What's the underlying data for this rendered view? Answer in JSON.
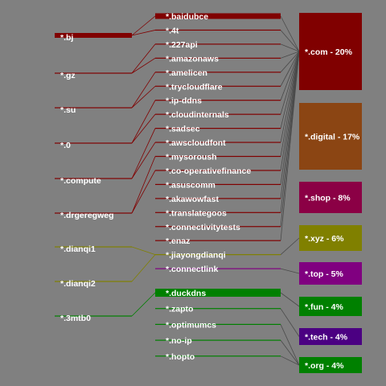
{
  "colors": {
    "background": "#808080",
    "link_default": "#4a4a4a"
  },
  "left_nodes": [
    {
      "id": "bj",
      "label": "*.bj",
      "color": "#800000"
    },
    {
      "id": "gz",
      "label": "*.gz",
      "color": "#800000"
    },
    {
      "id": "su",
      "label": "*.su",
      "color": "#800000"
    },
    {
      "id": "0",
      "label": "*.0",
      "color": "#800000"
    },
    {
      "id": "compute",
      "label": "*.compute",
      "color": "#800000"
    },
    {
      "id": "drgeregweg",
      "label": "*.drgeregweg",
      "color": "#800000"
    },
    {
      "id": "dianqi1",
      "label": "*.dianqi1",
      "color": "#808000"
    },
    {
      "id": "dianqi2",
      "label": "*.dianqi2",
      "color": "#808000"
    },
    {
      "id": "3mtb0",
      "label": "*.3mtb0",
      "color": "#008000"
    }
  ],
  "middle_nodes": [
    {
      "id": "baidubce",
      "label": "*.baidubce",
      "color": "#800000"
    },
    {
      "id": "4t",
      "label": "*.4t",
      "color": "#800000"
    },
    {
      "id": "227api",
      "label": "*.227api",
      "color": "#800000"
    },
    {
      "id": "amazonaws",
      "label": "*.amazonaws",
      "color": "#800000"
    },
    {
      "id": "amelicen",
      "label": "*.amelicen",
      "color": "#800000"
    },
    {
      "id": "trycloudflare",
      "label": "*.trycloudflare",
      "color": "#800000"
    },
    {
      "id": "ip-ddns",
      "label": "*.ip-ddns",
      "color": "#800000"
    },
    {
      "id": "cloudinternals",
      "label": "*.cloudinternals",
      "color": "#800000"
    },
    {
      "id": "sadsec",
      "label": "*.sadsec",
      "color": "#800000"
    },
    {
      "id": "awscloudfont",
      "label": "*.awscloudfont",
      "color": "#800000"
    },
    {
      "id": "mysoroush",
      "label": "*.mysoroush",
      "color": "#800000"
    },
    {
      "id": "co-operativefinance",
      "label": "*.co-operativefinance",
      "color": "#800000"
    },
    {
      "id": "asuscomm",
      "label": "*.asuscomm",
      "color": "#800000"
    },
    {
      "id": "akawowfast",
      "label": "*.akawowfast",
      "color": "#800000"
    },
    {
      "id": "translategoos",
      "label": "*.translategoos",
      "color": "#800000"
    },
    {
      "id": "connectivitytests",
      "label": "*.connectivitytests",
      "color": "#800000"
    },
    {
      "id": "enaz",
      "label": "*.enaz",
      "color": "#800000"
    },
    {
      "id": "jiayongdianqi",
      "label": "*.jiayongdianqi",
      "color": "#808000"
    },
    {
      "id": "connectlink",
      "label": "*.connectlink",
      "color": "#800080"
    },
    {
      "id": "duckdns",
      "label": "*.duckdns",
      "color": "#008000"
    },
    {
      "id": "zapto",
      "label": "*.zapto",
      "color": "#008000"
    },
    {
      "id": "optimumcs",
      "label": "*.optimumcs",
      "color": "#008000"
    },
    {
      "id": "no-ip",
      "label": "*.no-ip",
      "color": "#008000"
    },
    {
      "id": "hopto",
      "label": "*.hopto",
      "color": "#008000"
    }
  ],
  "right_nodes": [
    {
      "id": "com",
      "label": "*.com - 20%",
      "color": "#800000"
    },
    {
      "id": "digital",
      "label": "*.digital - 17%",
      "color": "#8b4513"
    },
    {
      "id": "shop",
      "label": "*.shop - 8%",
      "color": "#8b0045"
    },
    {
      "id": "xyz",
      "label": "*.xyz - 6%",
      "color": "#808000"
    },
    {
      "id": "top",
      "label": "*.top - 5%",
      "color": "#800080"
    },
    {
      "id": "fun",
      "label": "*.fun - 4%",
      "color": "#008000"
    },
    {
      "id": "tech",
      "label": "*.tech - 4%",
      "color": "#4b0082"
    },
    {
      "id": "org",
      "label": "*.org - 4%",
      "color": "#008000"
    }
  ],
  "links": [
    [
      "bj",
      "baidubce"
    ],
    [
      "bj",
      "4t"
    ],
    [
      "gz",
      "227api"
    ],
    [
      "gz",
      "amazonaws"
    ],
    [
      "su",
      "amelicen"
    ],
    [
      "su",
      "trycloudflare"
    ],
    [
      "0",
      "ip-ddns"
    ],
    [
      "0",
      "cloudinternals"
    ],
    [
      "compute",
      "sadsec"
    ],
    [
      "compute",
      "awscloudfont"
    ],
    [
      "drgeregweg",
      "mysoroush"
    ],
    [
      "drgeregweg",
      "co-operativefinance"
    ],
    [
      "dianqi1",
      "jiayongdianqi"
    ],
    [
      "dianqi2",
      "jiayongdianqi"
    ],
    [
      "3mtb0",
      "duckdns"
    ],
    [
      "baidubce",
      "com"
    ],
    [
      "4t",
      "com"
    ],
    [
      "227api",
      "com"
    ],
    [
      "amazonaws",
      "com"
    ],
    [
      "amelicen",
      "com"
    ],
    [
      "trycloudflare",
      "com"
    ],
    [
      "ip-ddns",
      "com"
    ],
    [
      "cloudinternals",
      "com"
    ],
    [
      "sadsec",
      "com"
    ],
    [
      "awscloudfont",
      "com"
    ],
    [
      "mysoroush",
      "com"
    ],
    [
      "co-operativefinance",
      "com"
    ],
    [
      "asuscomm",
      "com"
    ],
    [
      "akawowfast",
      "com"
    ],
    [
      "translategoos",
      "com"
    ],
    [
      "connectivitytests",
      "com"
    ],
    [
      "enaz",
      "com"
    ],
    [
      "jiayongdianqi",
      "xyz"
    ],
    [
      "connectlink",
      "top"
    ],
    [
      "duckdns",
      "fun"
    ],
    [
      "zapto",
      "tech"
    ],
    [
      "optimumcs",
      "org"
    ],
    [
      "no-ip",
      "org"
    ],
    [
      "hopto",
      "org"
    ]
  ]
}
